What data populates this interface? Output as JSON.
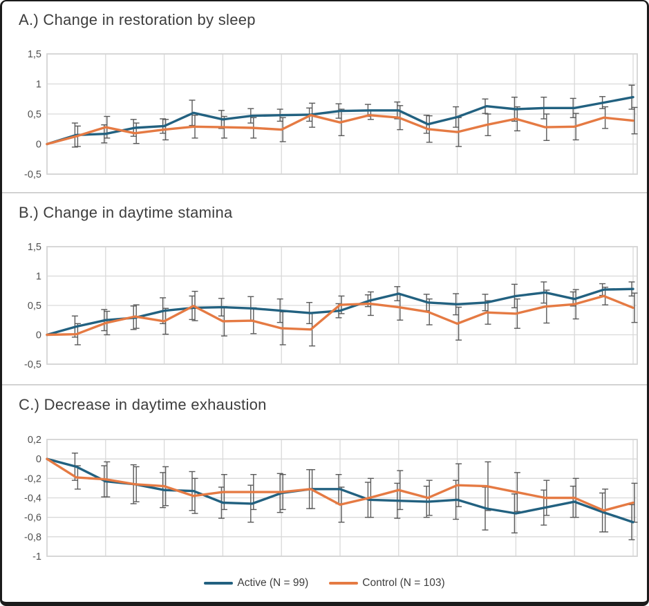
{
  "figure": {
    "legend": {
      "position": "bottom-center",
      "active_label": "Active (N = 99)",
      "control_label": "Control (N = 103)"
    },
    "colors": {
      "active": "#226180",
      "control": "#e57a43",
      "error_bar": "#595959",
      "grid": "#d9d9d9",
      "plot_border": "#d4d4d4",
      "title_text": "#3d3d3d",
      "tick_text": "#4f4f4f",
      "frame_border": "#1b1b1b",
      "background": "#ffffff"
    }
  },
  "chart_data": [
    {
      "type": "line",
      "panel_label": "A",
      "title": "A.) Change in restoration by sleep",
      "xlabel": "",
      "ylabel": "",
      "x": [
        0,
        1,
        2,
        3,
        4,
        5,
        6,
        7,
        8,
        9,
        10,
        11,
        12,
        13,
        14,
        15,
        16,
        17,
        18,
        19,
        20
      ],
      "ylim": [
        -0.5,
        1.5
      ],
      "grid": true,
      "yticks": [
        {
          "v": 1.5,
          "label": "1,5"
        },
        {
          "v": 1,
          "label": "1"
        },
        {
          "v": 0.5,
          "label": "0,5"
        },
        {
          "v": 0,
          "label": "0"
        },
        {
          "v": -0.5,
          "label": "-0,5"
        }
      ],
      "series": [
        {
          "name": "Active (N = 99)",
          "color_key": "active",
          "values": [
            0,
            0.15,
            0.17,
            0.27,
            0.3,
            0.52,
            0.41,
            0.47,
            0.48,
            0.49,
            0.55,
            0.56,
            0.56,
            0.33,
            0.45,
            0.63,
            0.58,
            0.6,
            0.6,
            0.69,
            0.78
          ],
          "err": [
            0,
            0.2,
            0.15,
            0.14,
            0.12,
            0.21,
            0.15,
            0.12,
            0.1,
            0.11,
            0.12,
            0.1,
            0.14,
            0.15,
            0.17,
            0.12,
            0.2,
            0.18,
            0.16,
            0.1,
            0.2
          ]
        },
        {
          "name": "Control (N = 103)",
          "color_key": "control",
          "values": [
            0,
            0.13,
            0.28,
            0.18,
            0.24,
            0.29,
            0.28,
            0.27,
            0.24,
            0.48,
            0.36,
            0.48,
            0.44,
            0.25,
            0.2,
            0.32,
            0.42,
            0.28,
            0.29,
            0.44,
            0.39
          ],
          "err": [
            0,
            0.17,
            0.18,
            0.17,
            0.17,
            0.19,
            0.18,
            0.17,
            0.2,
            0.2,
            0.22,
            0.07,
            0.2,
            0.22,
            0.24,
            0.18,
            0.2,
            0.22,
            0.22,
            0.18,
            0.22
          ]
        }
      ]
    },
    {
      "type": "line",
      "panel_label": "B",
      "title": "B.) Change in daytime stamina",
      "xlabel": "",
      "ylabel": "",
      "x": [
        0,
        1,
        2,
        3,
        4,
        5,
        6,
        7,
        8,
        9,
        10,
        11,
        12,
        13,
        14,
        15,
        16,
        17,
        18,
        19,
        20
      ],
      "ylim": [
        -0.5,
        1.5
      ],
      "grid": true,
      "yticks": [
        {
          "v": 1.5,
          "label": "1,5"
        },
        {
          "v": 1,
          "label": "1"
        },
        {
          "v": 0.5,
          "label": "0,5"
        },
        {
          "v": 0,
          "label": "0"
        },
        {
          "v": -0.5,
          "label": "-0,5"
        }
      ],
      "series": [
        {
          "name": "Active (N = 99)",
          "color_key": "active",
          "values": [
            0,
            0.14,
            0.25,
            0.29,
            0.41,
            0.46,
            0.47,
            0.45,
            0.41,
            0.37,
            0.41,
            0.58,
            0.7,
            0.55,
            0.52,
            0.55,
            0.66,
            0.72,
            0.61,
            0.77,
            0.78
          ],
          "err": [
            0,
            0.18,
            0.18,
            0.2,
            0.22,
            0.2,
            0.15,
            0.2,
            0.2,
            0.18,
            0.12,
            0.1,
            0.12,
            0.14,
            0.18,
            0.14,
            0.2,
            0.18,
            0.12,
            0.1,
            0.12
          ]
        },
        {
          "name": "Control (N = 103)",
          "color_key": "control",
          "values": [
            0,
            0.01,
            0.2,
            0.31,
            0.23,
            0.49,
            0.23,
            0.24,
            0.11,
            0.09,
            0.51,
            0.53,
            0.47,
            0.39,
            0.19,
            0.38,
            0.36,
            0.48,
            0.52,
            0.66,
            0.46
          ],
          "err": [
            0,
            0.18,
            0.2,
            0.2,
            0.22,
            0.25,
            0.25,
            0.22,
            0.28,
            0.28,
            0.15,
            0.2,
            0.22,
            0.22,
            0.28,
            0.2,
            0.25,
            0.28,
            0.25,
            0.15,
            0.25
          ]
        }
      ]
    },
    {
      "type": "line",
      "panel_label": "C",
      "title": "C.) Decrease in daytime exhaustion",
      "xlabel": "",
      "ylabel": "",
      "x": [
        0,
        1,
        2,
        3,
        4,
        5,
        6,
        7,
        8,
        9,
        10,
        11,
        12,
        13,
        14,
        15,
        16,
        17,
        18,
        19,
        20
      ],
      "ylim": [
        -1,
        0.2
      ],
      "grid": true,
      "yticks": [
        {
          "v": 0.2,
          "label": "0,2"
        },
        {
          "v": 0,
          "label": "0"
        },
        {
          "v": -0.2,
          "label": "-0,2"
        },
        {
          "v": -0.4,
          "label": "-0,4"
        },
        {
          "v": -0.6,
          "label": "-0,6"
        },
        {
          "v": -0.8,
          "label": "-0,8"
        },
        {
          "v": -1,
          "label": "-1"
        }
      ],
      "series": [
        {
          "name": "Active (N = 99)",
          "color_key": "active",
          "values": [
            0,
            -0.08,
            -0.23,
            -0.26,
            -0.32,
            -0.33,
            -0.45,
            -0.46,
            -0.35,
            -0.31,
            -0.31,
            -0.42,
            -0.43,
            -0.44,
            -0.42,
            -0.51,
            -0.56,
            -0.5,
            -0.44,
            -0.55,
            -0.65
          ],
          "err": [
            0,
            0.14,
            0.16,
            0.2,
            0.18,
            0.2,
            0.16,
            0.19,
            0.2,
            0.2,
            0.15,
            0.18,
            0.18,
            0.16,
            0.2,
            0.22,
            0.2,
            0.18,
            0.16,
            0.2,
            0.18
          ]
        },
        {
          "name": "Control (N = 103)",
          "color_key": "control",
          "values": [
            0,
            -0.19,
            -0.21,
            -0.26,
            -0.28,
            -0.38,
            -0.34,
            -0.34,
            -0.34,
            -0.31,
            -0.47,
            -0.4,
            -0.32,
            -0.4,
            -0.27,
            -0.28,
            -0.34,
            -0.4,
            -0.4,
            -0.53,
            -0.45
          ],
          "err": [
            0,
            0.12,
            0.18,
            0.18,
            0.2,
            0.18,
            0.18,
            0.18,
            0.18,
            0.2,
            0.18,
            0.2,
            0.2,
            0.18,
            0.22,
            0.25,
            0.2,
            0.18,
            0.2,
            0.22,
            0.2
          ]
        }
      ]
    }
  ]
}
